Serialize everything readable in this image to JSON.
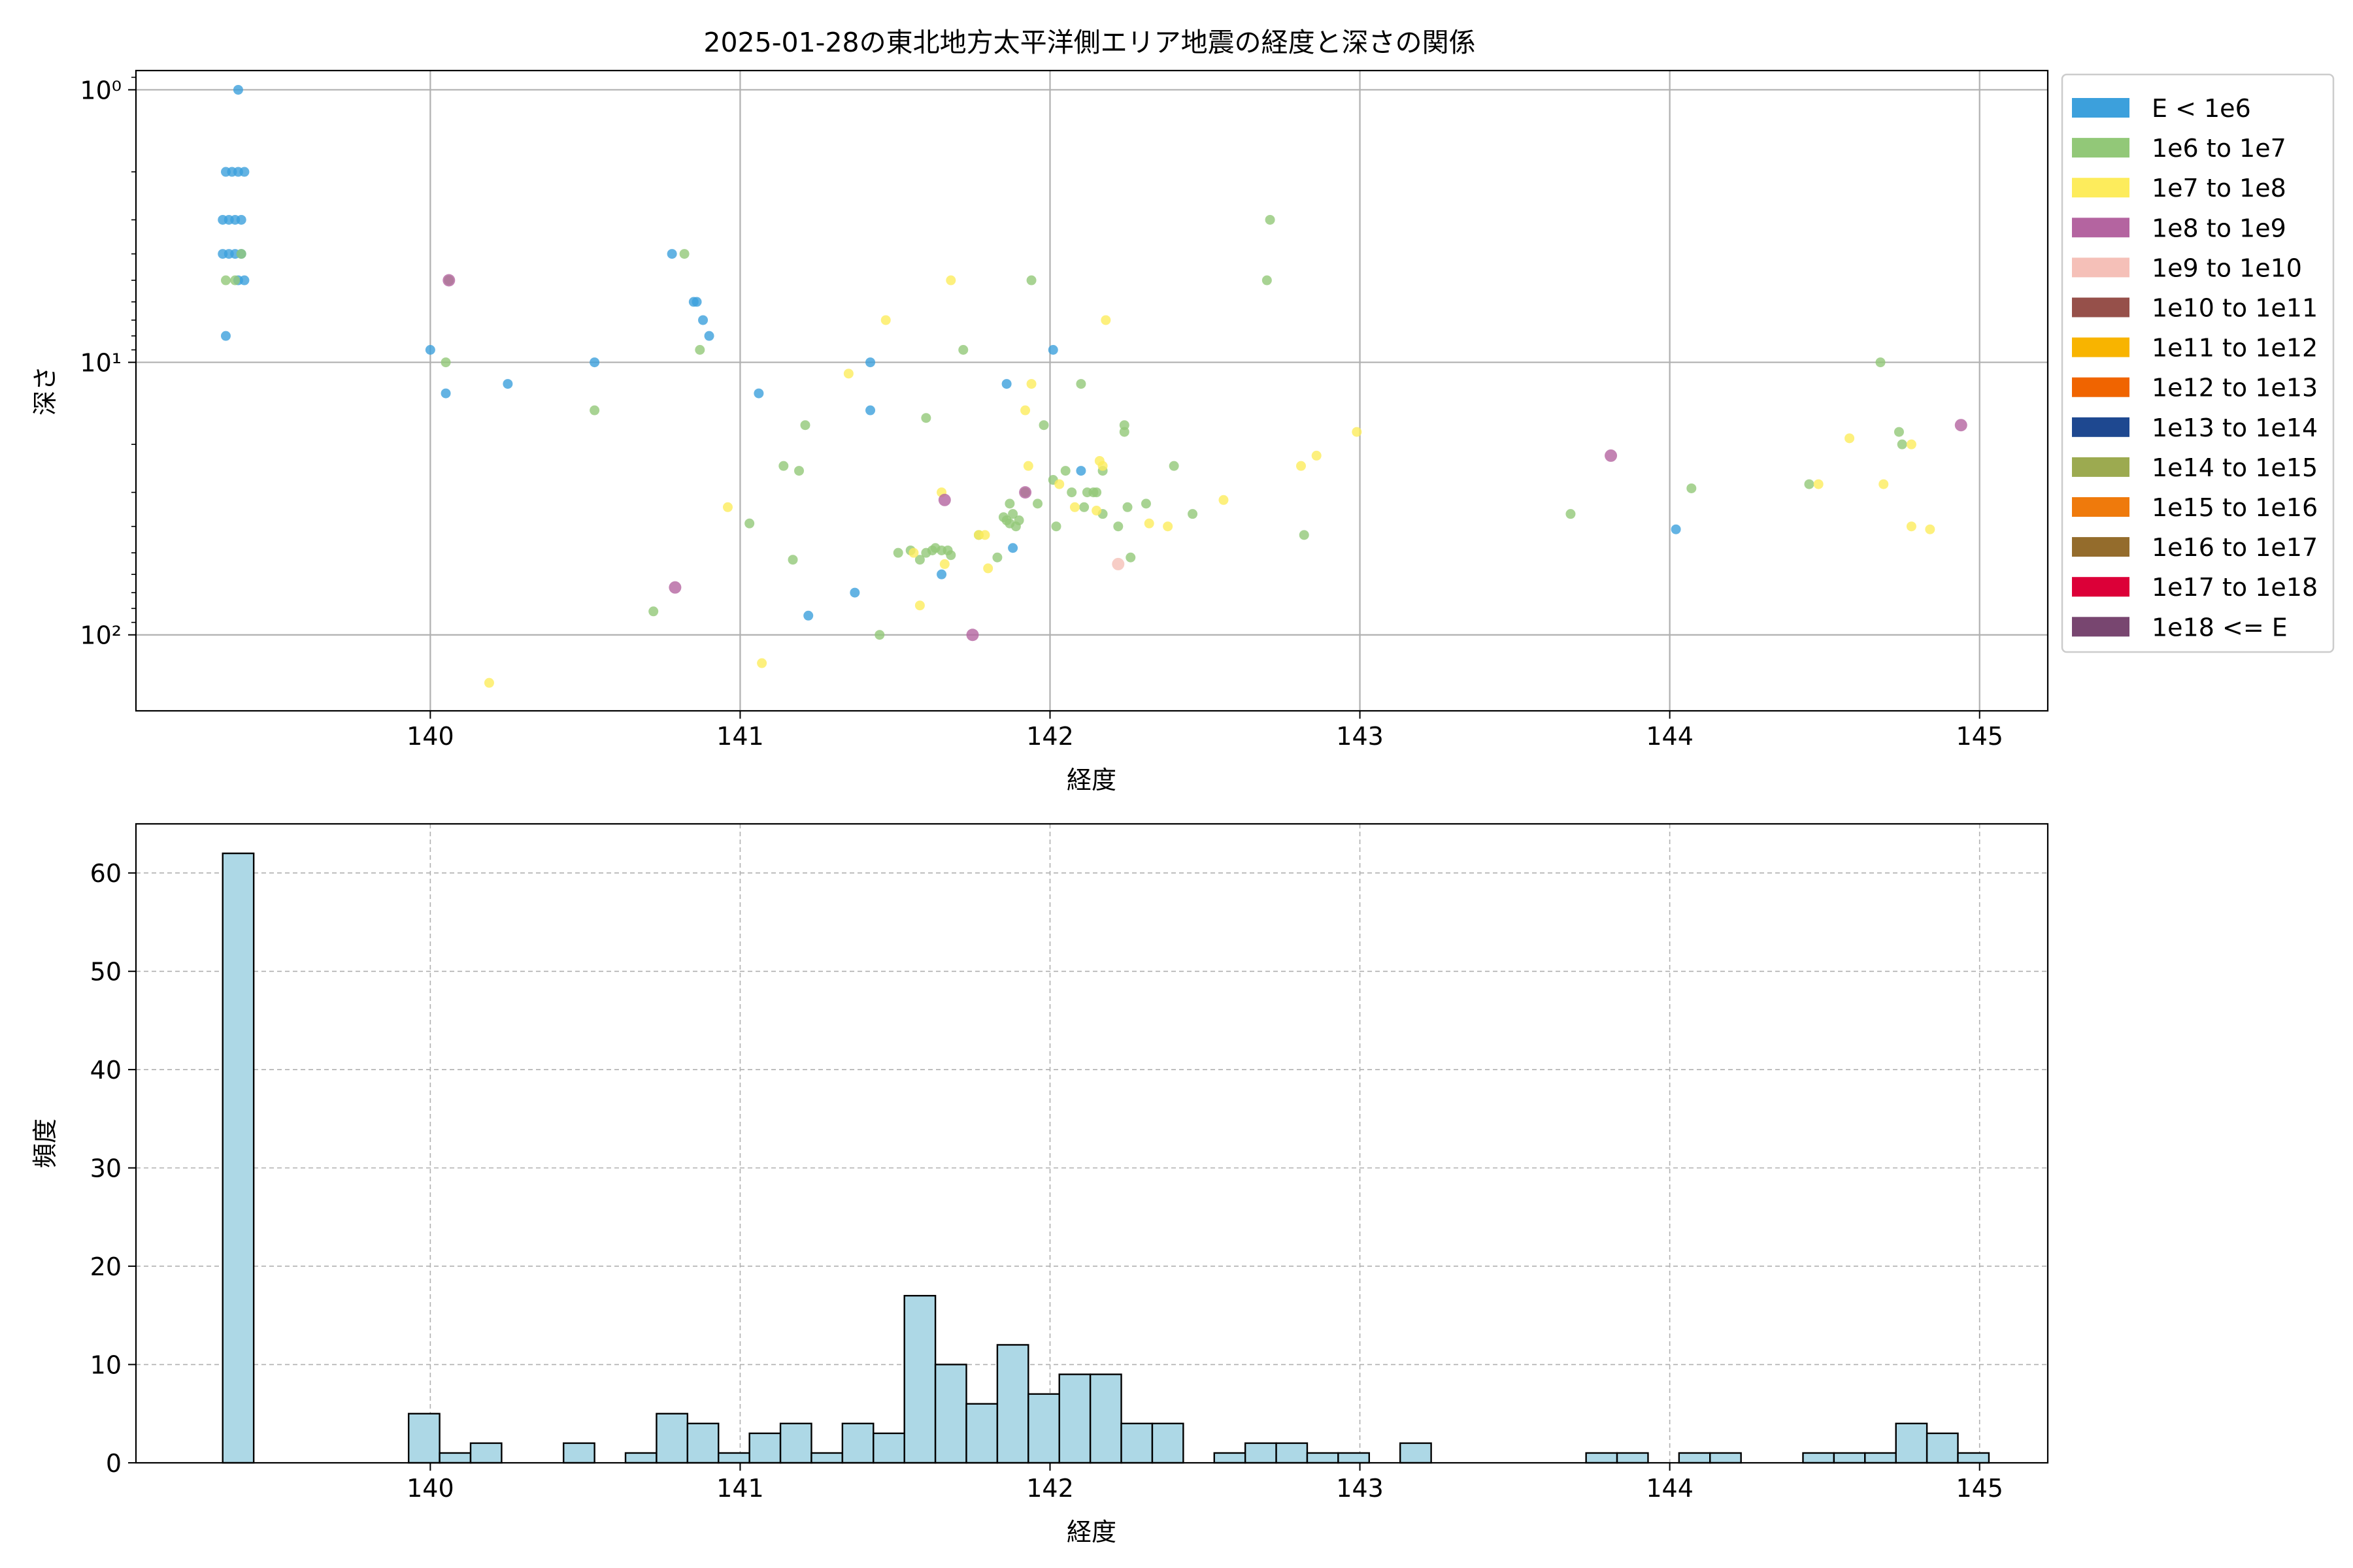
{
  "chart_data": [
    {
      "type": "scatter",
      "title": "2025-01-28の東北地方太平洋側エリア地震の経度と深さの関係",
      "xlabel": "経度",
      "ylabel": "深さ",
      "xlim": [
        139.05,
        145.22
      ],
      "ylim": [
        190,
        0.85
      ],
      "yscale": "log",
      "y_inverted": true,
      "x_ticks": [
        140,
        141,
        142,
        143,
        144,
        145
      ],
      "y_ticks": [
        {
          "value": 1,
          "label": "10⁰"
        },
        {
          "value": 10,
          "label": "10¹"
        },
        {
          "value": 100,
          "label": "10²"
        }
      ],
      "grid": true,
      "legend_placement": "outside-right",
      "legend": [
        {
          "label": "E < 1e6",
          "color": "#3ca0dc"
        },
        {
          "label": "1e6 to 1e7",
          "color": "#92c878"
        },
        {
          "label": "1e7 to 1e8",
          "color": "#fdec5c"
        },
        {
          "label": "1e8 to 1e9",
          "color": "#b464a0"
        },
        {
          "label": "1e9 to 1e10",
          "color": "#f5c0b8"
        },
        {
          "label": "1e10 to 1e11",
          "color": "#96504a"
        },
        {
          "label": "1e11 to 1e12",
          "color": "#f8b400"
        },
        {
          "label": "1e12 to 1e13",
          "color": "#f06400"
        },
        {
          "label": "1e13 to 1e14",
          "color": "#1e4890"
        },
        {
          "label": "1e14 to 1e15",
          "color": "#9caa50"
        },
        {
          "label": "1e15 to 1e16",
          "color": "#ef7a0c"
        },
        {
          "label": "1e16 to 1e17",
          "color": "#946c2c"
        },
        {
          "label": "1e17 to 1e18",
          "color": "#dc0038"
        },
        {
          "label": "1e18 <= E",
          "color": "#784670"
        }
      ],
      "series": [
        {
          "class": 0,
          "points": [
            [
              139.38,
              1
            ],
            [
              139.34,
              2
            ],
            [
              139.36,
              2
            ],
            [
              139.38,
              2
            ],
            [
              139.4,
              2
            ],
            [
              139.33,
              3
            ],
            [
              139.35,
              3
            ],
            [
              139.37,
              3
            ],
            [
              139.39,
              3
            ],
            [
              139.33,
              4
            ],
            [
              139.35,
              4
            ],
            [
              139.37,
              4
            ],
            [
              139.39,
              4
            ],
            [
              139.38,
              5
            ],
            [
              139.4,
              5
            ],
            [
              139.34,
              8
            ],
            [
              140.0,
              9
            ],
            [
              140.05,
              13
            ],
            [
              140.25,
              12
            ],
            [
              140.53,
              10
            ],
            [
              140.85,
              6
            ],
            [
              140.86,
              6
            ],
            [
              140.88,
              7
            ],
            [
              140.9,
              8
            ],
            [
              141.06,
              13
            ],
            [
              141.22,
              85
            ],
            [
              141.37,
              70
            ],
            [
              141.42,
              10
            ],
            [
              141.42,
              15
            ],
            [
              141.65,
              60
            ],
            [
              141.86,
              12
            ],
            [
              141.88,
              48
            ],
            [
              142.01,
              9
            ],
            [
              142.1,
              25
            ],
            [
              144.02,
              41
            ],
            [
              140.78,
              4
            ]
          ]
        },
        {
          "class": 1,
          "points": [
            [
              139.34,
              5
            ],
            [
              139.37,
              5
            ],
            [
              139.39,
              4
            ],
            [
              140.06,
              5
            ],
            [
              140.05,
              10
            ],
            [
              140.53,
              15
            ],
            [
              140.72,
              82
            ],
            [
              140.82,
              4
            ],
            [
              140.87,
              9
            ],
            [
              141.03,
              39
            ],
            [
              141.14,
              24
            ],
            [
              141.17,
              53
            ],
            [
              141.19,
              25
            ],
            [
              141.21,
              17
            ],
            [
              141.45,
              100
            ],
            [
              141.51,
              50
            ],
            [
              141.55,
              49
            ],
            [
              141.58,
              53
            ],
            [
              141.6,
              16
            ],
            [
              141.6,
              50
            ],
            [
              141.62,
              49
            ],
            [
              141.63,
              48
            ],
            [
              141.65,
              49
            ],
            [
              141.67,
              49
            ],
            [
              141.68,
              51
            ],
            [
              141.72,
              9
            ],
            [
              141.77,
              43
            ],
            [
              141.83,
              52
            ],
            [
              141.85,
              37
            ],
            [
              141.87,
              33
            ],
            [
              141.86,
              38
            ],
            [
              141.87,
              39
            ],
            [
              141.88,
              36
            ],
            [
              141.89,
              40
            ],
            [
              141.9,
              38
            ],
            [
              141.92,
              30
            ],
            [
              141.94,
              5
            ],
            [
              141.96,
              33
            ],
            [
              141.98,
              17
            ],
            [
              142.01,
              27
            ],
            [
              142.02,
              40
            ],
            [
              142.05,
              25
            ],
            [
              142.07,
              30
            ],
            [
              142.1,
              12
            ],
            [
              142.11,
              34
            ],
            [
              142.12,
              30
            ],
            [
              142.14,
              30
            ],
            [
              142.15,
              30
            ],
            [
              142.17,
              36
            ],
            [
              142.17,
              25
            ],
            [
              142.22,
              40
            ],
            [
              142.24,
              18
            ],
            [
              142.24,
              17
            ],
            [
              142.25,
              34
            ],
            [
              142.26,
              52
            ],
            [
              142.31,
              33
            ],
            [
              142.4,
              24
            ],
            [
              142.46,
              36
            ],
            [
              142.7,
              5
            ],
            [
              142.71,
              3
            ],
            [
              142.82,
              43
            ],
            [
              143.68,
              36
            ],
            [
              144.07,
              29
            ],
            [
              144.45,
              28
            ],
            [
              144.68,
              10
            ],
            [
              144.74,
              18
            ],
            [
              144.75,
              20
            ]
          ]
        },
        {
          "class": 2,
          "points": [
            [
              140.19,
              150
            ],
            [
              140.96,
              34
            ],
            [
              141.07,
              127
            ],
            [
              141.35,
              11
            ],
            [
              141.47,
              7
            ],
            [
              141.56,
              50
            ],
            [
              141.58,
              78
            ],
            [
              141.65,
              30
            ],
            [
              141.66,
              55
            ],
            [
              141.68,
              5
            ],
            [
              141.77,
              43
            ],
            [
              141.79,
              43
            ],
            [
              141.8,
              57
            ],
            [
              141.92,
              15
            ],
            [
              141.93,
              24
            ],
            [
              141.94,
              12
            ],
            [
              142.03,
              28
            ],
            [
              142.08,
              34
            ],
            [
              142.15,
              35
            ],
            [
              142.16,
              23
            ],
            [
              142.17,
              24
            ],
            [
              142.18,
              7
            ],
            [
              142.32,
              39
            ],
            [
              142.38,
              40
            ],
            [
              142.56,
              32
            ],
            [
              142.81,
              24
            ],
            [
              142.86,
              22
            ],
            [
              142.99,
              18
            ],
            [
              144.48,
              28
            ],
            [
              144.58,
              19
            ],
            [
              144.69,
              28
            ],
            [
              144.78,
              20
            ],
            [
              144.78,
              40
            ],
            [
              144.84,
              41
            ]
          ]
        },
        {
          "class": 3,
          "points": [
            [
              140.06,
              5
            ],
            [
              140.79,
              67
            ],
            [
              141.66,
              32
            ],
            [
              141.75,
              100
            ],
            [
              141.92,
              30
            ],
            [
              143.81,
              22
            ],
            [
              144.94,
              17
            ]
          ]
        },
        {
          "class": 4,
          "points": [
            [
              142.22,
              55
            ]
          ]
        }
      ]
    },
    {
      "type": "bar",
      "subtype": "histogram",
      "xlabel": "経度",
      "ylabel": "頻度",
      "xlim": [
        139.05,
        145.22
      ],
      "ylim": [
        0,
        65
      ],
      "x_ticks": [
        140,
        141,
        142,
        143,
        144,
        145
      ],
      "y_ticks": [
        0,
        10,
        20,
        30,
        40,
        50,
        60
      ],
      "grid": true,
      "bar_color": "#add8e6",
      "bin_start": 139.33,
      "bin_width": 0.1,
      "values": [
        62,
        0,
        0,
        0,
        0,
        0,
        5,
        1,
        2,
        0,
        0,
        2,
        0,
        1,
        5,
        4,
        1,
        3,
        4,
        1,
        4,
        3,
        17,
        10,
        6,
        12,
        7,
        9,
        9,
        4,
        4,
        0,
        1,
        2,
        2,
        1,
        1,
        0,
        2,
        0,
        0,
        0,
        0,
        0,
        1,
        1,
        0,
        1,
        1,
        0,
        0,
        1,
        1,
        1,
        4,
        3,
        1
      ]
    }
  ]
}
